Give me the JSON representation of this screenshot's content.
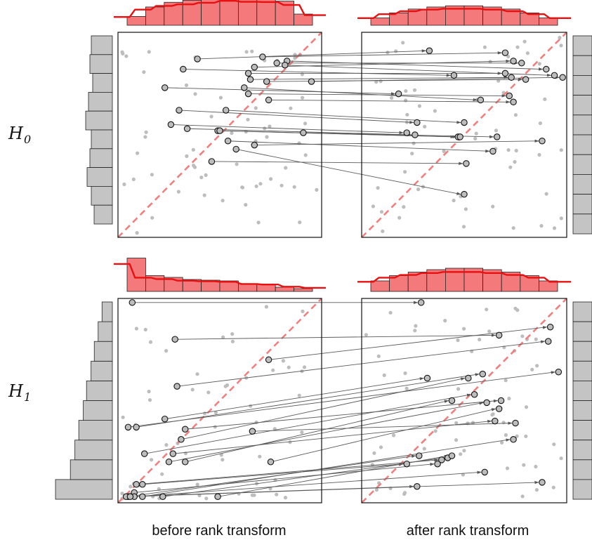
{
  "captions": {
    "before": "before rank transform",
    "after": "after rank transform"
  },
  "colors": {
    "grey_point": "#bdbdbd",
    "red": "#e81010",
    "red_fill": "#f4797b",
    "diagonal": "#f08080",
    "histogram_grey": "#c4c4c4"
  },
  "chart_data": [
    {
      "type": "scatter",
      "row_label": {
        "main": "H",
        "sub": "0"
      },
      "xlim": [
        0,
        1
      ],
      "ylim": [
        0,
        1
      ],
      "diagonal": true,
      "highlighted_before": [
        [
          0.39,
          0.87
        ],
        [
          0.71,
          0.88
        ],
        [
          0.78,
          0.85
        ],
        [
          0.83,
          0.86
        ],
        [
          0.67,
          0.83
        ],
        [
          0.82,
          0.84
        ],
        [
          0.64,
          0.8
        ],
        [
          0.65,
          0.77
        ],
        [
          0.73,
          0.76
        ],
        [
          0.95,
          0.76
        ],
        [
          0.32,
          0.82
        ],
        [
          0.23,
          0.73
        ],
        [
          0.62,
          0.73
        ],
        [
          0.64,
          0.7
        ],
        [
          0.74,
          0.67
        ],
        [
          0.3,
          0.62
        ],
        [
          0.53,
          0.62
        ],
        [
          0.26,
          0.55
        ],
        [
          0.34,
          0.53
        ],
        [
          0.49,
          0.52
        ],
        [
          0.5,
          0.52
        ],
        [
          0.91,
          0.51
        ],
        [
          0.67,
          0.45
        ],
        [
          0.54,
          0.47
        ],
        [
          0.46,
          0.37
        ],
        [
          0.58,
          0.43
        ]
      ],
      "highlighted_after": [
        [
          0.33,
          0.91
        ],
        [
          0.7,
          0.9
        ],
        [
          0.78,
          0.85
        ],
        [
          0.9,
          0.82
        ],
        [
          0.74,
          0.86
        ],
        [
          0.94,
          0.79
        ],
        [
          0.7,
          0.8
        ],
        [
          0.73,
          0.78
        ],
        [
          0.8,
          0.77
        ],
        [
          0.98,
          0.78
        ],
        [
          0.45,
          0.79
        ],
        [
          0.18,
          0.7
        ],
        [
          0.58,
          0.67
        ],
        [
          0.72,
          0.69
        ],
        [
          0.74,
          0.66
        ],
        [
          0.27,
          0.56
        ],
        [
          0.5,
          0.56
        ],
        [
          0.22,
          0.51
        ],
        [
          0.26,
          0.5
        ],
        [
          0.47,
          0.49
        ],
        [
          0.48,
          0.49
        ],
        [
          0.66,
          0.49
        ],
        [
          0.88,
          0.47
        ],
        [
          0.64,
          0.42
        ],
        [
          0.51,
          0.36
        ],
        [
          0.5,
          0.21
        ]
      ],
      "before_x_histogram": [
        0.3,
        0.62,
        0.78,
        0.85,
        0.92,
        1.0,
        0.96,
        0.95,
        0.82,
        0.38
      ],
      "after_y_histogram": [
        1,
        1,
        1,
        1,
        1,
        1,
        1,
        1,
        1,
        1
      ]
    },
    {
      "type": "scatter",
      "row_label": {
        "main": "H",
        "sub": "1"
      },
      "xlim": [
        0,
        1
      ],
      "ylim": [
        0,
        1
      ],
      "diagonal": true,
      "highlighted_before": [
        [
          0.07,
          0.98
        ],
        [
          0.28,
          0.8
        ],
        [
          0.74,
          0.7
        ],
        [
          0.29,
          0.57
        ],
        [
          0.05,
          0.37
        ],
        [
          0.09,
          0.37
        ],
        [
          0.23,
          0.41
        ],
        [
          0.31,
          0.31
        ],
        [
          0.33,
          0.2
        ],
        [
          0.13,
          0.24
        ],
        [
          0.33,
          0.36
        ],
        [
          0.25,
          0.2
        ],
        [
          0.75,
          0.2
        ],
        [
          0.27,
          0.24
        ],
        [
          0.66,
          0.35
        ],
        [
          0.12,
          0.09
        ],
        [
          0.05,
          0.03
        ],
        [
          0.09,
          0.09
        ],
        [
          0.08,
          0.05
        ],
        [
          0.22,
          0.03
        ],
        [
          0.49,
          0.03
        ],
        [
          0.12,
          0.03
        ],
        [
          0.08,
          0.03
        ],
        [
          0.04,
          0.03
        ],
        [
          0.06,
          0.03
        ]
      ],
      "highlighted_after": [
        [
          0.29,
          0.98
        ],
        [
          0.67,
          0.82
        ],
        [
          0.92,
          0.86
        ],
        [
          0.91,
          0.79
        ],
        [
          0.96,
          0.64
        ],
        [
          0.59,
          0.63
        ],
        [
          0.32,
          0.61
        ],
        [
          0.52,
          0.61
        ],
        [
          0.44,
          0.5
        ],
        [
          0.55,
          0.53
        ],
        [
          0.68,
          0.5
        ],
        [
          0.61,
          0.49
        ],
        [
          0.67,
          0.46
        ],
        [
          0.65,
          0.4
        ],
        [
          0.75,
          0.39
        ],
        [
          0.22,
          0.19
        ],
        [
          0.28,
          0.23
        ],
        [
          0.39,
          0.21
        ],
        [
          0.37,
          0.19
        ],
        [
          0.42,
          0.22
        ],
        [
          0.44,
          0.23
        ],
        [
          0.74,
          0.31
        ],
        [
          0.6,
          0.15
        ],
        [
          0.27,
          0.08
        ],
        [
          0.88,
          0.1
        ]
      ],
      "before_x_histogram": [
        0.95,
        0.45,
        0.4,
        0.34,
        0.32,
        0.3,
        0.22,
        0.2,
        0.12,
        0.08
      ],
      "before_y_histogram": [
        0.88,
        0.65,
        0.58,
        0.52,
        0.45,
        0.4,
        0.33,
        0.28,
        0.22,
        0.16
      ]
    }
  ]
}
